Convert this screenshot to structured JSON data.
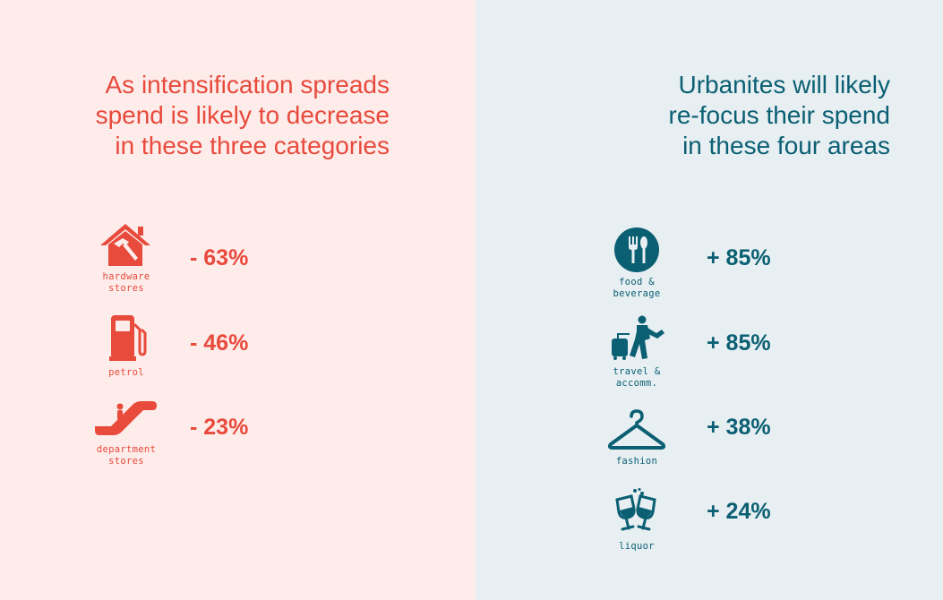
{
  "colors": {
    "decrease": "#e84a3c",
    "increase": "#0b5f73",
    "left_bg": "#fdecea",
    "right_bg": "#e7eff2"
  },
  "decrease": {
    "heading": [
      "As intensification spreads",
      "spend is likely to decrease",
      "in these three categories"
    ],
    "items": [
      {
        "icon": "house-hammer-icon",
        "caption": [
          "hardware",
          "stores"
        ],
        "value": "- 63%"
      },
      {
        "icon": "fuel-pump-icon",
        "caption": [
          "petrol"
        ],
        "value": "- 46%"
      },
      {
        "icon": "escalator-icon",
        "caption": [
          "department",
          "stores"
        ],
        "value": "- 23%"
      }
    ]
  },
  "increase": {
    "heading": [
      "Urbanites will likely",
      "re-focus their spend",
      "in these four areas"
    ],
    "items": [
      {
        "icon": "fork-spoon-icon",
        "caption": [
          "food &",
          "beverage"
        ],
        "value": "+ 85%"
      },
      {
        "icon": "traveller-suitcase-icon",
        "caption": [
          "travel &",
          "accomm."
        ],
        "value": "+ 85%"
      },
      {
        "icon": "coat-hanger-icon",
        "caption": [
          "fashion"
        ],
        "value": "+ 38%"
      },
      {
        "icon": "wine-glasses-icon",
        "caption": [
          "liquor"
        ],
        "value": "+ 24%"
      }
    ]
  }
}
